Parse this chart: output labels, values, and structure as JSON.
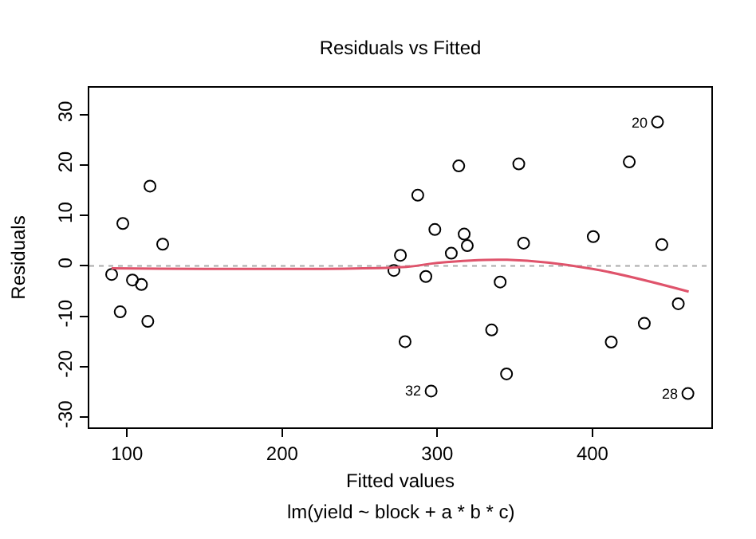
{
  "chart_data": {
    "type": "scatter",
    "title": "Residuals vs Fitted",
    "xlabel": "Fitted values",
    "ylabel": "Residuals",
    "series": [
      {
        "color": "#000000",
        "x": [
          90.1,
          97.3,
          95.6,
          103.5,
          109.3,
          114.8,
          113.4,
          123.0,
          272.0,
          276.2,
          279.2,
          287.4,
          313.8,
          298.4,
          292.6,
          309.0,
          317.3,
          319.3,
          296.0,
          352.5,
          355.6,
          340.5,
          335.0,
          344.6,
          400.5,
          423.7,
          441.9,
          412.1,
          433.4,
          444.7,
          455.3,
          461.5
        ],
        "values": [
          -1.7,
          8.4,
          -9.1,
          -2.8,
          -3.7,
          15.8,
          -11.0,
          4.3,
          -0.9,
          2.1,
          -15.0,
          14.0,
          19.8,
          7.2,
          -2.1,
          2.5,
          6.3,
          4.0,
          -24.8,
          20.2,
          4.5,
          -3.2,
          -12.7,
          -21.4,
          5.8,
          20.6,
          28.5,
          -15.1,
          -11.4,
          4.2,
          -7.5,
          -25.3
        ]
      },
      {
        "type": "line",
        "color": "#df536b",
        "line_style": "solid",
        "marker": "none",
        "x": [
          90,
          280,
          300,
          345,
          400,
          462
        ],
        "values": [
          -0.5,
          -0.2,
          0.6,
          1.2,
          -0.6,
          -5.1
        ]
      }
    ],
    "annotations": [
      {
        "text": "20",
        "x": 441.9,
        "y": 28.5
      },
      {
        "text": "32",
        "x": 296.0,
        "y": -24.8
      },
      {
        "text": "28",
        "x": 461.5,
        "y": -25.3
      },
      "lm(yield ~ block + a * b * c)"
    ],
    "ref_lines": [
      {
        "axis": "y",
        "value": 0,
        "color": "#aaaaaa",
        "line_style": "dotted"
      }
    ],
    "xlim": [
      75.7,
      476.6
    ],
    "ylim": [
      -32.0,
      35.3
    ],
    "xticks": [
      100,
      200,
      300,
      400
    ],
    "yticks": [
      -30,
      -20,
      -10,
      0,
      10,
      20,
      30
    ],
    "grid": false,
    "marker": "circle"
  }
}
